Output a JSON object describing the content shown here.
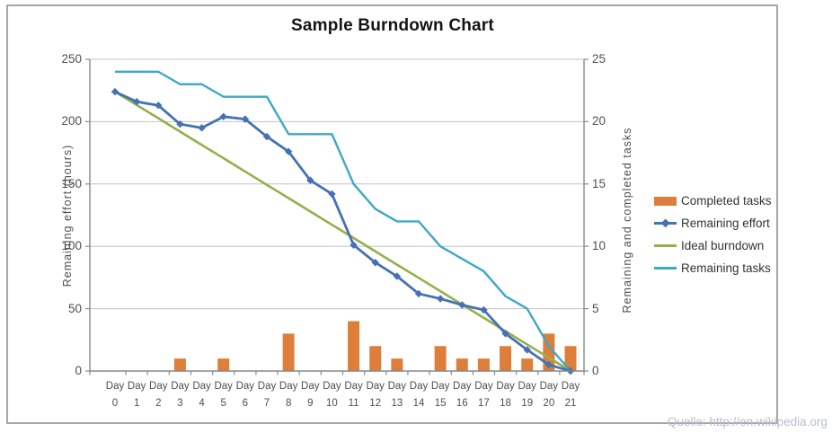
{
  "title": "Sample Burndown Chart",
  "watermark": "Quelle: http://en.wikipedia.org",
  "axes": {
    "left": {
      "title": "Remaining effort (hours)",
      "ticks": [
        250,
        200,
        150,
        100,
        50,
        0
      ]
    },
    "right": {
      "title": "Remaining and completed tasks",
      "ticks": [
        25,
        20,
        15,
        10,
        5,
        0
      ]
    },
    "x": {
      "word": "Day",
      "days": [
        "0",
        "1",
        "2",
        "3",
        "4",
        "5",
        "6",
        "7",
        "8",
        "9",
        "10",
        "11",
        "12",
        "13",
        "14",
        "15",
        "16",
        "17",
        "18",
        "19",
        "20",
        "21"
      ]
    }
  },
  "legend": {
    "items": [
      {
        "label": "Completed tasks",
        "type": "bar",
        "color": "#dd7e3b"
      },
      {
        "label": "Remaining effort",
        "type": "line-diamond",
        "color": "#4472b4"
      },
      {
        "label": "Ideal burndown",
        "type": "line",
        "color": "#94b04c"
      },
      {
        "label": "Remaining tasks",
        "type": "line",
        "color": "#3fa8c5"
      }
    ]
  },
  "chart_data": {
    "type": "combo",
    "title": "Sample Burndown Chart",
    "categories": [
      "Day 0",
      "Day 1",
      "Day 2",
      "Day 3",
      "Day 4",
      "Day 5",
      "Day 6",
      "Day 7",
      "Day 8",
      "Day 9",
      "Day 10",
      "Day 11",
      "Day 12",
      "Day 13",
      "Day 14",
      "Day 15",
      "Day 16",
      "Day 17",
      "Day 18",
      "Day 19",
      "Day 20",
      "Day 21"
    ],
    "ylabel_left": "Remaining effort (hours)",
    "ylabel_right": "Remaining and completed tasks",
    "ylim_left": [
      0,
      250
    ],
    "ylim_right": [
      0,
      25
    ],
    "grid": "horizontal",
    "legend_position": "right",
    "series": [
      {
        "name": "Completed tasks",
        "type": "bar",
        "axis": "right",
        "color": "#dd7e3b",
        "values": [
          0,
          0,
          0,
          1,
          0,
          1,
          0,
          0,
          3,
          0,
          0,
          4,
          2,
          1,
          0,
          2,
          1,
          1,
          2,
          1,
          3,
          2
        ]
      },
      {
        "name": "Remaining effort",
        "type": "line",
        "marker": "diamond",
        "axis": "left",
        "color": "#4472b4",
        "values": [
          224,
          216,
          213,
          198,
          195,
          204,
          202,
          188,
          176,
          153,
          142,
          101,
          87,
          76,
          62,
          58,
          53,
          49,
          30,
          17,
          5,
          0
        ]
      },
      {
        "name": "Ideal burndown",
        "type": "line",
        "marker": "none",
        "axis": "left",
        "color": "#94b04c",
        "values": [
          224,
          213.3,
          202.7,
          192,
          181.3,
          170.7,
          160,
          149.3,
          138.7,
          128,
          117.3,
          106.7,
          96,
          85.3,
          74.7,
          64,
          53.3,
          42.7,
          32,
          21.3,
          10.7,
          0
        ]
      },
      {
        "name": "Remaining tasks",
        "type": "line",
        "marker": "none",
        "axis": "right",
        "color": "#3fa8c5",
        "values": [
          24,
          24,
          24,
          23,
          23,
          22,
          22,
          22,
          19,
          19,
          19,
          15,
          13,
          12,
          12,
          10,
          9,
          8,
          6,
          5,
          2,
          0
        ]
      }
    ]
  }
}
